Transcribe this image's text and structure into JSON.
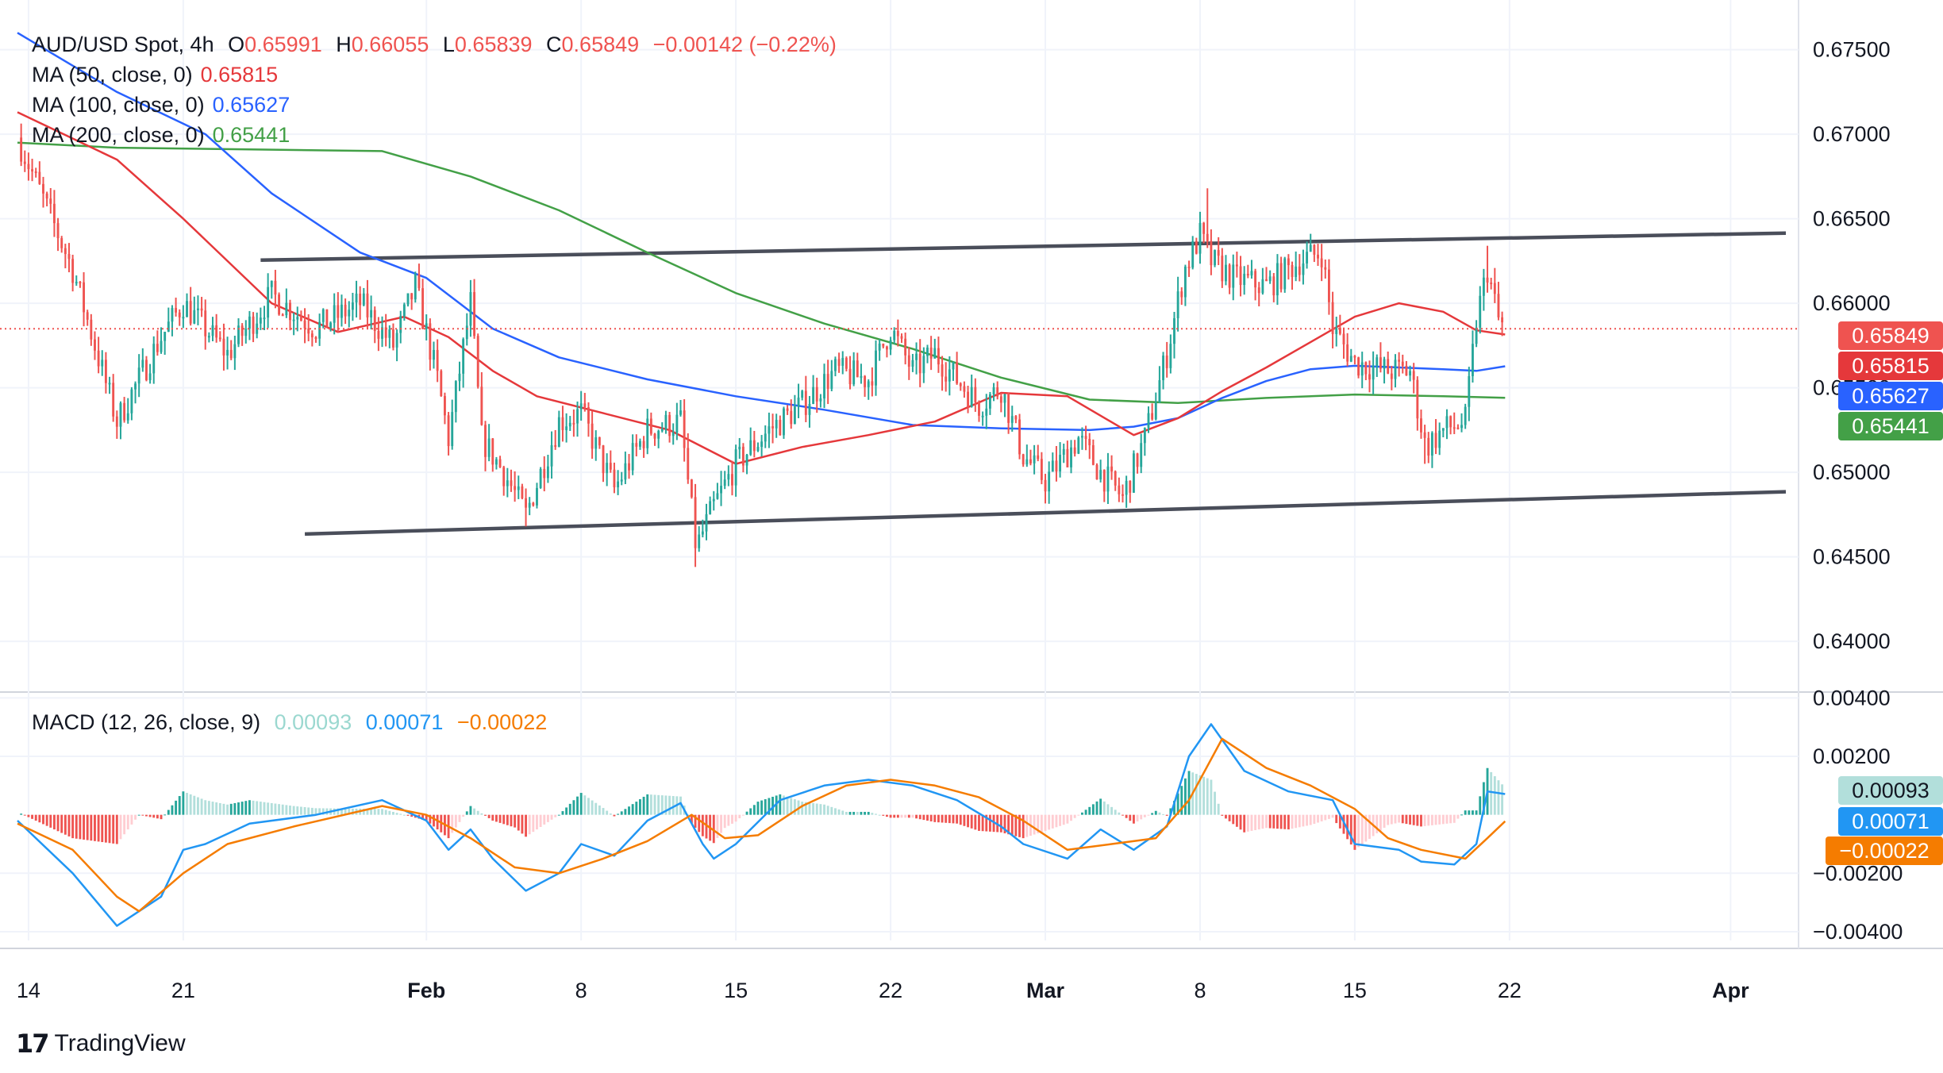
{
  "legend": {
    "symbol": "AUD/USD Spot, 4h",
    "o_label": "O",
    "o": "0.65991",
    "h_label": "H",
    "h": "0.66055",
    "l_label": "L",
    "l": "0.65839",
    "c_label": "C",
    "c": "0.65849",
    "change": "−0.00142 (−0.22%)",
    "ma50_label": "MA (50, close, 0)",
    "ma50": "0.65815",
    "ma100_label": "MA (100, close, 0)",
    "ma100": "0.65627",
    "ma200_label": "MA (200, close, 0)",
    "ma200": "0.65441",
    "macd_label": "MACD (12, 26, close, 9)",
    "macd_hist": "0.00093",
    "macd_line": "0.00071",
    "macd_signal": "−0.00022"
  },
  "price_badges": {
    "close": "0.65849",
    "ma50": "0.65815",
    "ma100": "0.65627",
    "ma200": "0.65441",
    "hist": "0.00093",
    "macd": "0.00071",
    "signal": "−0.00022"
  },
  "colors": {
    "up": "#26a69a",
    "down": "#ef5350",
    "ma50": "#e5383b",
    "ma100": "#2962ff",
    "ma200": "#43a047",
    "macd": "#2196f3",
    "signal": "#f57c00",
    "hist_up": "#26a69a",
    "hist_up_light": "#b2dfdb",
    "hist_down": "#ef5350",
    "hist_down_light": "#ffcdd2",
    "trendline": "#4a4e5a"
  },
  "branding": {
    "name": "TradingView"
  },
  "chart_data": {
    "type": "candlestick",
    "title": "AUD/USD Spot, 4h",
    "ylim": [
      0.637,
      0.677
    ],
    "y_ticks": [
      0.64,
      0.645,
      0.65,
      0.655,
      0.66,
      0.665,
      0.67,
      0.675
    ],
    "y_tick_labels": [
      "0.64000",
      "0.64500",
      "0.65000",
      "0.65500",
      "0.66000",
      "0.66500",
      "0.67000",
      "0.67500"
    ],
    "x_domain_days": [
      -0.5,
      79.5
    ],
    "x_ticks": [
      {
        "day": 0,
        "label": "14",
        "bold": false
      },
      {
        "day": 7,
        "label": "21",
        "bold": false
      },
      {
        "day": 18,
        "label": "Feb",
        "bold": true
      },
      {
        "day": 25,
        "label": "8",
        "bold": false
      },
      {
        "day": 32,
        "label": "15",
        "bold": false
      },
      {
        "day": 39,
        "label": "22",
        "bold": false
      },
      {
        "day": 46,
        "label": "Mar",
        "bold": true
      },
      {
        "day": 53,
        "label": "8",
        "bold": false
      },
      {
        "day": 60,
        "label": "15",
        "bold": false
      },
      {
        "day": 67,
        "label": "22",
        "bold": false
      },
      {
        "day": 77,
        "label": "Apr",
        "bold": true
      }
    ],
    "key_closes": [
      {
        "day": -0.5,
        "price": 0.6698
      },
      {
        "day": 2,
        "price": 0.662
      },
      {
        "day": 4,
        "price": 0.653
      },
      {
        "day": 6,
        "price": 0.658
      },
      {
        "day": 7,
        "price": 0.66
      },
      {
        "day": 9,
        "price": 0.657
      },
      {
        "day": 11,
        "price": 0.6605
      },
      {
        "day": 13,
        "price": 0.6585
      },
      {
        "day": 15,
        "price": 0.66
      },
      {
        "day": 16.5,
        "price": 0.6575
      },
      {
        "day": 17.5,
        "price": 0.661
      },
      {
        "day": 18.5,
        "price": 0.6555
      },
      {
        "day": 19,
        "price": 0.652
      },
      {
        "day": 20,
        "price": 0.66
      },
      {
        "day": 20.5,
        "price": 0.652
      },
      {
        "day": 21.5,
        "price": 0.65
      },
      {
        "day": 22.5,
        "price": 0.6475
      },
      {
        "day": 24,
        "price": 0.653
      },
      {
        "day": 25,
        "price": 0.6535
      },
      {
        "day": 26.5,
        "price": 0.649
      },
      {
        "day": 28,
        "price": 0.6525
      },
      {
        "day": 29.5,
        "price": 0.653
      },
      {
        "day": 30.2,
        "price": 0.6455
      },
      {
        "day": 31,
        "price": 0.648
      },
      {
        "day": 32,
        "price": 0.6505
      },
      {
        "day": 33.5,
        "price": 0.6525
      },
      {
        "day": 35,
        "price": 0.654
      },
      {
        "day": 36.5,
        "price": 0.656
      },
      {
        "day": 38,
        "price": 0.6555
      },
      {
        "day": 39,
        "price": 0.6585
      },
      {
        "day": 40,
        "price": 0.656
      },
      {
        "day": 41,
        "price": 0.657
      },
      {
        "day": 43,
        "price": 0.654
      },
      {
        "day": 44,
        "price": 0.655
      },
      {
        "day": 45,
        "price": 0.651
      },
      {
        "day": 46,
        "price": 0.6495
      },
      {
        "day": 47.5,
        "price": 0.652
      },
      {
        "day": 48.5,
        "price": 0.65
      },
      {
        "day": 49.5,
        "price": 0.6485
      },
      {
        "day": 50.5,
        "price": 0.652
      },
      {
        "day": 51.5,
        "price": 0.657
      },
      {
        "day": 52.3,
        "price": 0.662
      },
      {
        "day": 53,
        "price": 0.664
      },
      {
        "day": 53.5,
        "price": 0.6625
      },
      {
        "day": 54.5,
        "price": 0.6615
      },
      {
        "day": 56,
        "price": 0.661
      },
      {
        "day": 57.5,
        "price": 0.6625
      },
      {
        "day": 58.5,
        "price": 0.663
      },
      {
        "day": 59,
        "price": 0.6585
      },
      {
        "day": 60,
        "price": 0.6565
      },
      {
        "day": 61.5,
        "price": 0.656
      },
      {
        "day": 62.5,
        "price": 0.656
      },
      {
        "day": 63.2,
        "price": 0.6515
      },
      {
        "day": 64,
        "price": 0.6525
      },
      {
        "day": 65,
        "price": 0.653
      },
      {
        "day": 65.5,
        "price": 0.659
      },
      {
        "day": 66,
        "price": 0.662
      },
      {
        "day": 66.5,
        "price": 0.659
      },
      {
        "day": 66.8,
        "price": 0.65849
      }
    ],
    "extremes": [
      {
        "day": 30.2,
        "low": 0.6444
      },
      {
        "day": 53.3,
        "high": 0.6668
      },
      {
        "day": 66.0,
        "high": 0.6634
      },
      {
        "day": 63.2,
        "low": 0.6505
      },
      {
        "day": 22.5,
        "low": 0.6468
      }
    ],
    "ma50": [
      {
        "day": -0.5,
        "price": 0.6713
      },
      {
        "day": 4,
        "price": 0.6685
      },
      {
        "day": 7,
        "price": 0.665
      },
      {
        "day": 11,
        "price": 0.66
      },
      {
        "day": 14,
        "price": 0.6583
      },
      {
        "day": 17,
        "price": 0.6592
      },
      {
        "day": 19,
        "price": 0.658
      },
      {
        "day": 21,
        "price": 0.656
      },
      {
        "day": 23,
        "price": 0.6545
      },
      {
        "day": 26,
        "price": 0.6535
      },
      {
        "day": 29,
        "price": 0.6525
      },
      {
        "day": 32,
        "price": 0.6505
      },
      {
        "day": 35,
        "price": 0.6515
      },
      {
        "day": 38,
        "price": 0.6522
      },
      {
        "day": 41,
        "price": 0.653
      },
      {
        "day": 44,
        "price": 0.6547
      },
      {
        "day": 47,
        "price": 0.6545
      },
      {
        "day": 50,
        "price": 0.6522
      },
      {
        "day": 52,
        "price": 0.6532
      },
      {
        "day": 54,
        "price": 0.6548
      },
      {
        "day": 56,
        "price": 0.6562
      },
      {
        "day": 58,
        "price": 0.6577
      },
      {
        "day": 60,
        "price": 0.6592
      },
      {
        "day": 62,
        "price": 0.66
      },
      {
        "day": 64,
        "price": 0.6595
      },
      {
        "day": 65.5,
        "price": 0.6584
      },
      {
        "day": 66.8,
        "price": 0.65815
      }
    ],
    "ma100": [
      {
        "day": -0.5,
        "price": 0.676
      },
      {
        "day": 4,
        "price": 0.6725
      },
      {
        "day": 8,
        "price": 0.67
      },
      {
        "day": 11,
        "price": 0.6665
      },
      {
        "day": 15,
        "price": 0.663
      },
      {
        "day": 18,
        "price": 0.6615
      },
      {
        "day": 21,
        "price": 0.6585
      },
      {
        "day": 24,
        "price": 0.6568
      },
      {
        "day": 28,
        "price": 0.6555
      },
      {
        "day": 32,
        "price": 0.6545
      },
      {
        "day": 36,
        "price": 0.6537
      },
      {
        "day": 40,
        "price": 0.6528
      },
      {
        "day": 44,
        "price": 0.6526
      },
      {
        "day": 48,
        "price": 0.6525
      },
      {
        "day": 50,
        "price": 0.6527
      },
      {
        "day": 52,
        "price": 0.6532
      },
      {
        "day": 54,
        "price": 0.6544
      },
      {
        "day": 56,
        "price": 0.6554
      },
      {
        "day": 58,
        "price": 0.6561
      },
      {
        "day": 60,
        "price": 0.6563
      },
      {
        "day": 62,
        "price": 0.6562
      },
      {
        "day": 64,
        "price": 0.6561
      },
      {
        "day": 65.5,
        "price": 0.656
      },
      {
        "day": 66.8,
        "price": 0.65627
      }
    ],
    "ma200": [
      {
        "day": -0.5,
        "price": 0.6695
      },
      {
        "day": 4,
        "price": 0.6692
      },
      {
        "day": 10,
        "price": 0.6691
      },
      {
        "day": 16,
        "price": 0.669
      },
      {
        "day": 20,
        "price": 0.6675
      },
      {
        "day": 24,
        "price": 0.6655
      },
      {
        "day": 28,
        "price": 0.663
      },
      {
        "day": 32,
        "price": 0.6606
      },
      {
        "day": 36,
        "price": 0.6588
      },
      {
        "day": 40,
        "price": 0.6573
      },
      {
        "day": 44,
        "price": 0.6556
      },
      {
        "day": 48,
        "price": 0.6543
      },
      {
        "day": 52,
        "price": 0.6541
      },
      {
        "day": 56,
        "price": 0.6544
      },
      {
        "day": 60,
        "price": 0.6546
      },
      {
        "day": 64,
        "price": 0.6545
      },
      {
        "day": 66.8,
        "price": 0.65441
      }
    ],
    "trendlines": [
      {
        "name": "upper",
        "from": {
          "day": 10.5,
          "price": 0.66255
        },
        "to": {
          "day": 79.5,
          "price": 0.66415
        }
      },
      {
        "name": "lower",
        "from": {
          "day": 12.5,
          "price": 0.64635
        },
        "to": {
          "day": 79.5,
          "price": 0.64885
        }
      }
    ],
    "last_price_line": 0.65849,
    "macd": {
      "ylim": [
        -0.0043,
        0.0042
      ],
      "y_ticks": [
        -0.004,
        -0.002,
        0.002,
        0.004
      ],
      "y_tick_labels": [
        "−0.00400",
        "−0.00200",
        "0.00200",
        "0.00400"
      ],
      "macd_line": [
        {
          "day": -0.5,
          "value": -0.0002
        },
        {
          "day": 2,
          "value": -0.002
        },
        {
          "day": 4,
          "value": -0.0038
        },
        {
          "day": 6,
          "value": -0.0028
        },
        {
          "day": 7,
          "value": -0.0012
        },
        {
          "day": 8,
          "value": -0.001
        },
        {
          "day": 10,
          "value": -0.0003
        },
        {
          "day": 13,
          "value": 0.0
        },
        {
          "day": 16,
          "value": 0.0005
        },
        {
          "day": 18,
          "value": -0.0002
        },
        {
          "day": 19,
          "value": -0.0012
        },
        {
          "day": 20,
          "value": -0.0005
        },
        {
          "day": 21,
          "value": -0.0015
        },
        {
          "day": 22.5,
          "value": -0.0026
        },
        {
          "day": 24,
          "value": -0.002
        },
        {
          "day": 25,
          "value": -0.001
        },
        {
          "day": 26.5,
          "value": -0.0014
        },
        {
          "day": 28,
          "value": -0.0002
        },
        {
          "day": 29.5,
          "value": 0.0004
        },
        {
          "day": 30.5,
          "value": -0.001
        },
        {
          "day": 31,
          "value": -0.0015
        },
        {
          "day": 32,
          "value": -0.001
        },
        {
          "day": 34,
          "value": 0.0005
        },
        {
          "day": 36,
          "value": 0.001
        },
        {
          "day": 38,
          "value": 0.0012
        },
        {
          "day": 40,
          "value": 0.001
        },
        {
          "day": 42,
          "value": 0.0005
        },
        {
          "day": 44,
          "value": -0.0004
        },
        {
          "day": 45,
          "value": -0.001
        },
        {
          "day": 47,
          "value": -0.0015
        },
        {
          "day": 48.5,
          "value": -0.0005
        },
        {
          "day": 50,
          "value": -0.0012
        },
        {
          "day": 51.5,
          "value": -0.0004
        },
        {
          "day": 52.5,
          "value": 0.002
        },
        {
          "day": 53.5,
          "value": 0.0031
        },
        {
          "day": 55,
          "value": 0.0015
        },
        {
          "day": 57,
          "value": 0.0008
        },
        {
          "day": 59,
          "value": 0.0005
        },
        {
          "day": 60,
          "value": -0.001
        },
        {
          "day": 62,
          "value": -0.0012
        },
        {
          "day": 63,
          "value": -0.0016
        },
        {
          "day": 64.5,
          "value": -0.0017
        },
        {
          "day": 65.5,
          "value": -0.001
        },
        {
          "day": 66,
          "value": 0.0008
        },
        {
          "day": 66.8,
          "value": 0.00071
        }
      ],
      "signal_line": [
        {
          "day": -0.5,
          "value": -0.0003
        },
        {
          "day": 2,
          "value": -0.0012
        },
        {
          "day": 4,
          "value": -0.0028
        },
        {
          "day": 5,
          "value": -0.0033
        },
        {
          "day": 7,
          "value": -0.002
        },
        {
          "day": 9,
          "value": -0.001
        },
        {
          "day": 12,
          "value": -0.0004
        },
        {
          "day": 16,
          "value": 0.0003
        },
        {
          "day": 18,
          "value": 0.0
        },
        {
          "day": 20,
          "value": -0.0008
        },
        {
          "day": 22,
          "value": -0.0018
        },
        {
          "day": 24,
          "value": -0.002
        },
        {
          "day": 26,
          "value": -0.0015
        },
        {
          "day": 28,
          "value": -0.0009
        },
        {
          "day": 30,
          "value": 0.0
        },
        {
          "day": 31.5,
          "value": -0.0008
        },
        {
          "day": 33,
          "value": -0.0007
        },
        {
          "day": 35,
          "value": 0.0003
        },
        {
          "day": 37,
          "value": 0.001
        },
        {
          "day": 39,
          "value": 0.0012
        },
        {
          "day": 41,
          "value": 0.001
        },
        {
          "day": 43,
          "value": 0.0006
        },
        {
          "day": 45,
          "value": -0.0002
        },
        {
          "day": 47,
          "value": -0.0012
        },
        {
          "day": 49,
          "value": -0.001
        },
        {
          "day": 51,
          "value": -0.0008
        },
        {
          "day": 52.5,
          "value": 0.0005
        },
        {
          "day": 54,
          "value": 0.0026
        },
        {
          "day": 56,
          "value": 0.0016
        },
        {
          "day": 58,
          "value": 0.001
        },
        {
          "day": 60,
          "value": 0.0002
        },
        {
          "day": 61.5,
          "value": -0.0008
        },
        {
          "day": 63,
          "value": -0.0012
        },
        {
          "day": 65,
          "value": -0.0015
        },
        {
          "day": 66,
          "value": -0.0008
        },
        {
          "day": 66.8,
          "value": -0.00022
        }
      ]
    }
  }
}
